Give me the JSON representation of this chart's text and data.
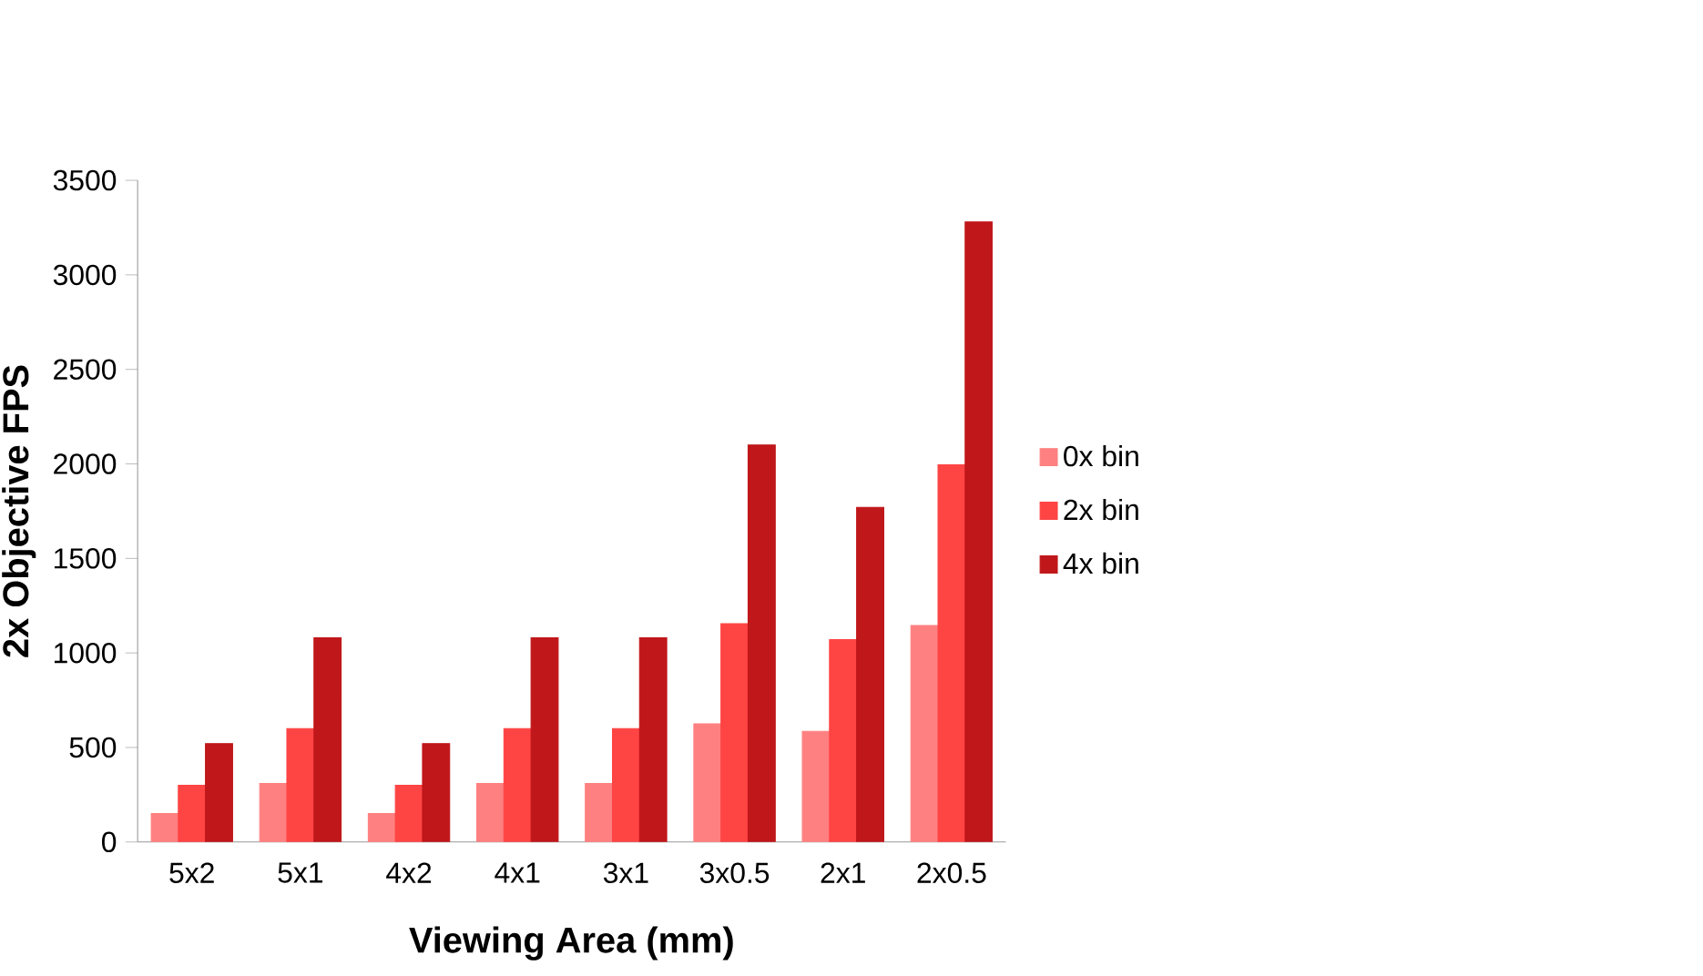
{
  "chart_data": {
    "type": "bar",
    "xlabel": "Viewing Area (mm)",
    "ylabel": "2x Objective FPS",
    "categories": [
      "5x2",
      "5x1",
      "4x2",
      "4x1",
      "3x1",
      "3x0.5",
      "2x1",
      "2x0.5"
    ],
    "series": [
      {
        "name": "0x bin",
        "color": "#ff8080",
        "values": [
          150,
          310,
          150,
          310,
          310,
          625,
          585,
          1145
        ]
      },
      {
        "name": "2x bin",
        "color": "#ff4444",
        "values": [
          300,
          600,
          300,
          600,
          600,
          1155,
          1070,
          1995
        ]
      },
      {
        "name": "4x bin",
        "color": "#c0171a",
        "values": [
          520,
          1080,
          520,
          1080,
          1080,
          2100,
          1770,
          3280
        ]
      }
    ],
    "ylim": [
      0,
      3500
    ],
    "yticks": [
      0,
      500,
      1000,
      1500,
      2000,
      2500,
      3000,
      3500
    ],
    "grid": false,
    "legend": "right"
  }
}
